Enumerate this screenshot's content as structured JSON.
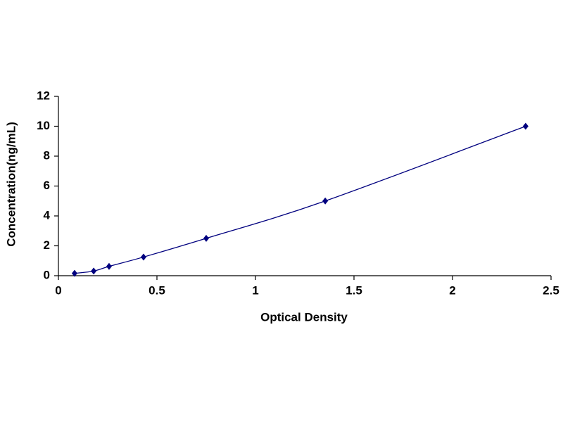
{
  "chart_data": {
    "type": "scatter",
    "xlabel": "Optical Density",
    "ylabel": "Concentration(ng/mL)",
    "series": [
      {
        "color": "#00007f",
        "x": [
          0.082,
          0.179,
          0.257,
          0.432,
          0.75,
          1.354,
          2.371
        ],
        "values": [
          0.156,
          0.312,
          0.625,
          1.25,
          2.5,
          5,
          10
        ]
      }
    ],
    "xlim": [
      0,
      2.5
    ],
    "xticks": [
      0,
      0.5,
      1,
      1.5,
      2,
      2.5
    ],
    "ylim": [
      0,
      12
    ],
    "yticks": [
      0,
      2,
      4,
      6,
      8,
      10,
      12
    ],
    "grid": false,
    "line": "smooth"
  }
}
